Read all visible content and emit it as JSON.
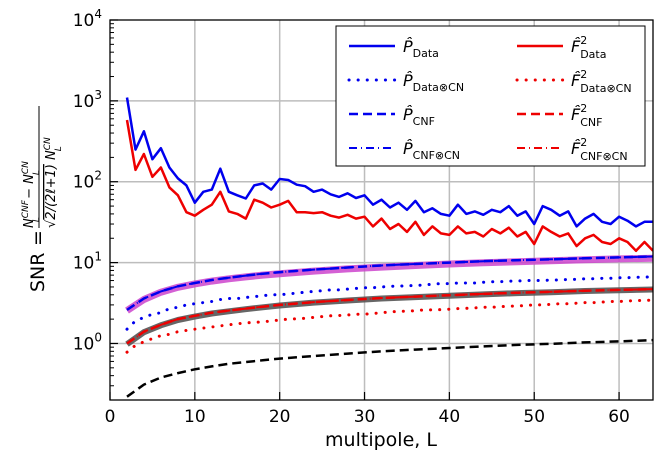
{
  "chart_data": {
    "type": "line",
    "title": "",
    "xlabel": "multipole, L",
    "ylabel": "SNR",
    "ylabel_math": "(N_L^CNF - N_L^CN) / sqrt(2/(2l+1)) N_L^CN",
    "x_scale": "linear",
    "y_scale": "log",
    "xlim": [
      0,
      64
    ],
    "ylim": [
      0.2,
      10000
    ],
    "x_ticks": [
      "0",
      "10",
      "20",
      "30",
      "40",
      "50",
      "60"
    ],
    "y_ticks": [
      "10^0",
      "10^1",
      "10^2",
      "10^3",
      "10^4"
    ],
    "grid": true,
    "legend_position": "top-right",
    "series": [
      {
        "name": "P̂_Data",
        "color": "#0000ee",
        "style": "solid",
        "width": 2.5,
        "in_legend": true,
        "x": [
          2,
          3,
          4,
          5,
          6,
          7,
          8,
          9,
          10,
          11,
          12,
          13,
          14,
          15,
          16,
          17,
          18,
          19,
          20,
          21,
          22,
          23,
          24,
          25,
          26,
          27,
          28,
          29,
          30,
          31,
          32,
          33,
          34,
          35,
          36,
          37,
          38,
          39,
          40,
          41,
          42,
          43,
          44,
          45,
          46,
          47,
          48,
          49,
          50,
          51,
          52,
          53,
          54,
          55,
          56,
          57,
          58,
          59,
          60,
          61,
          62,
          63,
          64
        ],
        "y": [
          1100,
          250,
          420,
          190,
          260,
          150,
          110,
          90,
          55,
          75,
          80,
          145,
          75,
          68,
          62,
          90,
          95,
          80,
          108,
          105,
          92,
          88,
          75,
          80,
          70,
          65,
          72,
          63,
          68,
          52,
          60,
          48,
          55,
          45,
          58,
          42,
          47,
          40,
          38,
          52,
          40,
          43,
          39,
          45,
          42,
          50,
          38,
          43,
          30,
          50,
          45,
          38,
          43,
          28,
          35,
          40,
          32,
          30,
          37,
          33,
          28,
          32,
          32
        ]
      },
      {
        "name": "F̂²_Data",
        "color": "#ee0000",
        "style": "solid",
        "width": 2.5,
        "in_legend": true,
        "x": [
          2,
          3,
          4,
          5,
          6,
          7,
          8,
          9,
          10,
          11,
          12,
          13,
          14,
          15,
          16,
          17,
          18,
          19,
          20,
          21,
          22,
          23,
          24,
          25,
          26,
          27,
          28,
          29,
          30,
          31,
          32,
          33,
          34,
          35,
          36,
          37,
          38,
          39,
          40,
          41,
          42,
          43,
          44,
          45,
          46,
          47,
          48,
          49,
          50,
          51,
          52,
          53,
          54,
          55,
          56,
          57,
          58,
          59,
          60,
          61,
          62,
          63,
          64
        ],
        "y": [
          580,
          140,
          220,
          115,
          150,
          85,
          68,
          42,
          38,
          45,
          52,
          75,
          43,
          40,
          35,
          60,
          55,
          48,
          52,
          58,
          42,
          42,
          41,
          42,
          38,
          36,
          39,
          35,
          37,
          28,
          35,
          26,
          30,
          24,
          32,
          22,
          28,
          23,
          22,
          28,
          23,
          24,
          21,
          26,
          23,
          27,
          21,
          24,
          17,
          28,
          24,
          21,
          23,
          16,
          20,
          22,
          18,
          17,
          20,
          18,
          14,
          18,
          14
        ]
      },
      {
        "name": "P̂_Data⊗CN",
        "color": "#0000ee",
        "style": "dotted",
        "width": 3,
        "in_legend": true,
        "x": [
          2,
          3,
          4,
          5,
          6,
          7,
          8,
          9,
          10,
          11,
          12,
          13,
          14,
          15,
          16,
          17,
          18,
          19,
          20,
          21,
          22,
          23,
          24,
          25,
          26,
          27,
          28,
          29,
          30,
          31,
          32,
          33,
          34,
          35,
          36,
          37,
          38,
          39,
          40,
          41,
          42,
          43,
          44,
          45,
          46,
          47,
          48,
          49,
          50,
          51,
          52,
          53,
          54,
          55,
          56,
          57,
          58,
          59,
          60,
          61,
          62,
          63,
          64
        ],
        "y": [
          1.5,
          1.9,
          2.1,
          2.3,
          2.4,
          2.7,
          2.8,
          3.0,
          3.1,
          3.2,
          3.3,
          3.5,
          3.6,
          3.6,
          3.7,
          3.8,
          3.9,
          4.0,
          4.0,
          4.1,
          4.2,
          4.3,
          4.4,
          4.5,
          4.6,
          4.6,
          4.7,
          4.8,
          4.9,
          4.9,
          5.0,
          5.1,
          5.1,
          5.2,
          5.2,
          5.3,
          5.4,
          5.5,
          5.5,
          5.6,
          5.6,
          5.6,
          5.7,
          5.8,
          5.8,
          5.9,
          5.9,
          6.0,
          6.0,
          6.0,
          6.1,
          6.1,
          6.2,
          6.2,
          6.3,
          6.3,
          6.4,
          6.4,
          6.5,
          6.5,
          6.6,
          6.6,
          6.7
        ]
      },
      {
        "name": "F̂²_Data⊗CN",
        "color": "#ee0000",
        "style": "dotted",
        "width": 3,
        "in_legend": true,
        "x": [
          2,
          3,
          4,
          5,
          6,
          7,
          8,
          9,
          10,
          11,
          12,
          13,
          14,
          15,
          16,
          17,
          18,
          19,
          20,
          21,
          22,
          23,
          24,
          25,
          26,
          27,
          28,
          29,
          30,
          31,
          32,
          33,
          34,
          35,
          36,
          37,
          38,
          39,
          40,
          41,
          42,
          43,
          44,
          45,
          46,
          47,
          48,
          49,
          50,
          51,
          52,
          53,
          54,
          55,
          56,
          57,
          58,
          59,
          60,
          61,
          62,
          63,
          64
        ],
        "y": [
          0.78,
          0.95,
          1.05,
          1.15,
          1.25,
          1.3,
          1.4,
          1.45,
          1.5,
          1.55,
          1.6,
          1.65,
          1.7,
          1.75,
          1.8,
          1.82,
          1.85,
          1.9,
          1.95,
          2.0,
          2.02,
          2.05,
          2.1,
          2.15,
          2.2,
          2.22,
          2.25,
          2.3,
          2.3,
          2.35,
          2.4,
          2.45,
          2.5,
          2.5,
          2.55,
          2.6,
          2.6,
          2.62,
          2.65,
          2.7,
          2.72,
          2.75,
          2.8,
          2.8,
          2.85,
          2.9,
          2.9,
          2.95,
          3.0,
          3.0,
          3.05,
          3.1,
          3.1,
          3.15,
          3.2,
          3.2,
          3.25,
          3.3,
          3.3,
          3.35,
          3.4,
          3.4,
          3.45
        ]
      },
      {
        "name": "P̂_CNF",
        "color": "#0000ee",
        "style": "dashed",
        "width": 2.5,
        "in_legend": true,
        "x": [
          2,
          4,
          6,
          8,
          10,
          12,
          14,
          16,
          18,
          20,
          24,
          28,
          32,
          36,
          40,
          44,
          48,
          52,
          56,
          60,
          64
        ],
        "y": [
          2.6,
          3.6,
          4.4,
          5.1,
          5.6,
          6.1,
          6.5,
          6.9,
          7.3,
          7.6,
          8.2,
          8.7,
          9.2,
          9.6,
          10.0,
          10.4,
          10.7,
          11.0,
          11.3,
          11.6,
          11.9
        ]
      },
      {
        "name": "F̂²_CNF",
        "color": "#ee0000",
        "style": "dashed",
        "width": 2.5,
        "in_legend": true,
        "x": [
          2,
          4,
          6,
          8,
          10,
          12,
          14,
          16,
          18,
          20,
          24,
          28,
          32,
          36,
          40,
          44,
          48,
          52,
          56,
          60,
          64
        ],
        "y": [
          1.0,
          1.4,
          1.7,
          2.0,
          2.2,
          2.4,
          2.55,
          2.7,
          2.85,
          3.0,
          3.25,
          3.45,
          3.65,
          3.8,
          3.95,
          4.1,
          4.25,
          4.35,
          4.5,
          4.6,
          4.7
        ]
      },
      {
        "name": "P̂_CNF⊗CN",
        "color": "#0000ee",
        "style": "dashdot",
        "width": 2,
        "in_legend": true,
        "x": [
          2,
          4,
          6,
          8,
          10,
          12,
          14,
          16,
          18,
          20,
          24,
          28,
          32,
          36,
          40,
          44,
          48,
          52,
          56,
          60,
          64
        ],
        "y": [
          2.6,
          3.6,
          4.4,
          5.1,
          5.6,
          6.1,
          6.5,
          6.9,
          7.3,
          7.6,
          8.2,
          8.7,
          9.2,
          9.6,
          10.0,
          10.4,
          10.7,
          11.0,
          11.3,
          11.6,
          11.9
        ]
      },
      {
        "name": "F̂²_CNF⊗CN",
        "color": "#ee0000",
        "style": "dashdot",
        "width": 2,
        "in_legend": true,
        "x": [
          2,
          4,
          6,
          8,
          10,
          12,
          14,
          16,
          18,
          20,
          24,
          28,
          32,
          36,
          40,
          44,
          48,
          52,
          56,
          60,
          64
        ],
        "y": [
          1.0,
          1.4,
          1.7,
          2.0,
          2.2,
          2.4,
          2.55,
          2.7,
          2.85,
          3.0,
          3.25,
          3.45,
          3.65,
          3.8,
          3.95,
          4.1,
          4.25,
          4.35,
          4.5,
          4.6,
          4.7
        ]
      },
      {
        "name": "magenta band",
        "color": "#cc44cc",
        "style": "solid",
        "width": 7,
        "opacity": 0.85,
        "in_legend": false,
        "x": [
          2,
          4,
          6,
          8,
          10,
          12,
          14,
          16,
          18,
          20,
          24,
          28,
          32,
          36,
          40,
          44,
          48,
          52,
          56,
          60,
          64
        ],
        "y": [
          2.55,
          3.5,
          4.3,
          4.95,
          5.45,
          5.9,
          6.3,
          6.65,
          7.0,
          7.3,
          7.85,
          8.35,
          8.8,
          9.2,
          9.6,
          9.95,
          10.25,
          10.55,
          10.85,
          11.1,
          11.35
        ]
      },
      {
        "name": "gray band",
        "color": "#555555",
        "style": "solid",
        "width": 6,
        "opacity": 0.9,
        "in_legend": false,
        "x": [
          2,
          4,
          6,
          8,
          10,
          12,
          14,
          16,
          18,
          20,
          24,
          28,
          32,
          36,
          40,
          44,
          48,
          52,
          56,
          60,
          64
        ],
        "y": [
          0.98,
          1.38,
          1.68,
          1.95,
          2.15,
          2.35,
          2.5,
          2.65,
          2.8,
          2.95,
          3.2,
          3.4,
          3.6,
          3.75,
          3.9,
          4.05,
          4.2,
          4.3,
          4.45,
          4.55,
          4.65
        ]
      },
      {
        "name": "black dashed",
        "color": "#000000",
        "style": "dashed",
        "width": 2.5,
        "in_legend": false,
        "x": [
          2,
          4,
          6,
          8,
          10,
          12,
          14,
          16,
          18,
          20,
          24,
          28,
          32,
          36,
          40,
          44,
          48,
          52,
          56,
          60,
          64
        ],
        "y": [
          0.22,
          0.31,
          0.38,
          0.43,
          0.48,
          0.52,
          0.56,
          0.59,
          0.62,
          0.65,
          0.7,
          0.75,
          0.8,
          0.84,
          0.88,
          0.92,
          0.96,
          0.99,
          1.03,
          1.06,
          1.1
        ]
      }
    ],
    "legend": {
      "columns": 2,
      "entries": [
        {
          "series": "P̂_Data",
          "base": "P̂",
          "sup": "",
          "sub": "Data"
        },
        {
          "series": "F̂²_Data",
          "base": "F̂",
          "sup": "2",
          "sub": "Data"
        },
        {
          "series": "P̂_Data⊗CN",
          "base": "P̂",
          "sup": "",
          "sub": "Data⊗CN"
        },
        {
          "series": "F̂²_Data⊗CN",
          "base": "F̂",
          "sup": "2",
          "sub": "Data⊗CN"
        },
        {
          "series": "P̂_CNF",
          "base": "P̂",
          "sup": "",
          "sub": "CNF"
        },
        {
          "series": "F̂²_CNF",
          "base": "F̂",
          "sup": "2",
          "sub": "CNF"
        },
        {
          "series": "P̂_CNF⊗CN",
          "base": "P̂",
          "sup": "",
          "sub": "CNF⊗CN"
        },
        {
          "series": "F̂²_CNF⊗CN",
          "base": "F̂",
          "sup": "2",
          "sub": "CNF⊗CN"
        }
      ]
    }
  }
}
